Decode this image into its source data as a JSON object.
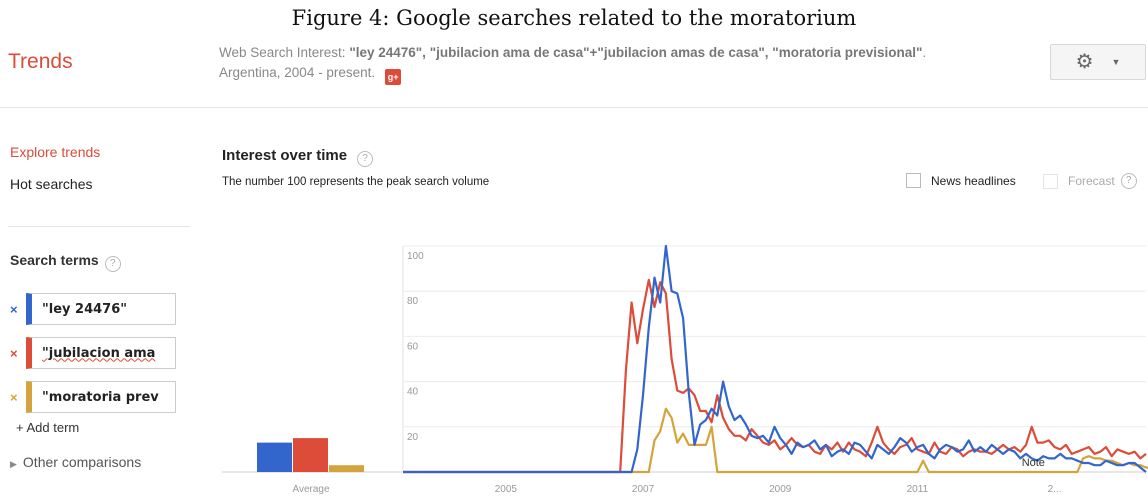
{
  "caption": "Figure 4: Google searches related to the moratorium",
  "app": {
    "logo": "Trends",
    "subtitle_prefix": "Web Search Interest: ",
    "subtitle_terms": "\"ley 24476\", \"jubilacion ama de casa\"+\"jubilacion amas de casa\", \"moratoria previsional\"",
    "subtitle_suffix": ". Argentina, 2004 - present.",
    "gplus_label": "g+",
    "settings_icon": "gear-icon"
  },
  "sidebar": {
    "explore": "Explore trends",
    "hot": "Hot searches",
    "search_terms_title": "Search terms",
    "help": "?",
    "terms": [
      {
        "label": "\"ley 24476\"",
        "color": "#3366cc",
        "remove": "×"
      },
      {
        "label": "\"jubilacion ama",
        "color": "#dd4b39",
        "remove": "×"
      },
      {
        "label": "\"moratoria prev",
        "color": "#d4a33b",
        "remove": "×"
      }
    ],
    "add_term": "Add term",
    "other_comparisons": "Other comparisons"
  },
  "main": {
    "title": "Interest over time",
    "help": "?",
    "desc": "The number 100 represents the peak search volume",
    "news_headlines": "News headlines",
    "forecast": "Forecast",
    "forecast_help": "?"
  },
  "chart_data": {
    "type": "line",
    "ylim": [
      0,
      100
    ],
    "yticks": [
      20,
      40,
      60,
      80,
      100
    ],
    "xticks": [
      "2005",
      "2007",
      "2009",
      "2011",
      "2..."
    ],
    "x_start": "2004-01",
    "x_step": "1 month",
    "note": "Note",
    "average_label": "Average",
    "average_values": [
      13,
      15,
      3
    ],
    "series": [
      {
        "color": "#3366cc",
        "values": [
          0,
          0,
          0,
          0,
          0,
          0,
          0,
          0,
          0,
          0,
          0,
          0,
          0,
          0,
          0,
          0,
          0,
          0,
          0,
          0,
          0,
          0,
          0,
          0,
          0,
          0,
          0,
          0,
          0,
          0,
          0,
          0,
          0,
          0,
          0,
          0,
          0,
          0,
          0,
          0,
          0,
          10,
          34,
          64,
          86,
          75,
          100,
          80,
          79,
          68,
          35,
          12,
          21,
          23,
          28,
          25,
          40,
          29,
          23,
          25,
          21,
          16,
          15,
          16,
          13,
          20,
          15,
          12,
          8,
          13,
          11,
          12,
          14,
          10,
          12,
          7,
          9,
          10,
          8,
          13,
          12,
          9,
          6,
          12,
          10,
          8,
          11,
          15,
          13,
          9,
          11,
          12,
          8,
          6,
          10,
          12,
          11,
          9,
          10,
          14,
          9,
          11,
          9,
          12,
          10,
          8,
          10,
          9,
          6,
          8,
          6,
          5,
          7,
          6,
          6,
          8,
          6,
          6,
          5,
          4,
          4,
          3,
          3,
          5,
          4,
          3,
          3,
          4,
          4,
          2,
          0
        ]
      },
      {
        "color": "#dd4b39",
        "values": [
          0,
          0,
          0,
          0,
          0,
          0,
          0,
          0,
          0,
          0,
          0,
          0,
          0,
          0,
          0,
          0,
          0,
          0,
          0,
          0,
          0,
          0,
          0,
          0,
          0,
          0,
          0,
          0,
          0,
          0,
          0,
          0,
          0,
          0,
          0,
          0,
          0,
          0,
          0,
          45,
          75,
          57,
          72,
          85,
          73,
          84,
          79,
          50,
          36,
          35,
          37,
          34,
          27,
          27,
          22,
          34,
          24,
          19,
          16,
          16,
          14,
          19,
          16,
          13,
          12,
          14,
          10,
          12,
          15,
          12,
          11,
          12,
          9,
          8,
          12,
          10,
          13,
          9,
          13,
          10,
          9,
          7,
          13,
          20,
          13,
          10,
          8,
          11,
          12,
          15,
          10,
          9,
          8,
          13,
          9,
          8,
          11,
          10,
          7,
          9,
          10,
          9,
          9,
          8,
          10,
          12,
          10,
          11,
          9,
          12,
          20,
          13,
          13,
          14,
          11,
          10,
          12,
          8,
          9,
          10,
          11,
          8,
          9,
          11,
          7,
          10,
          9,
          8,
          9,
          6,
          8
        ]
      },
      {
        "color": "#d4a33b",
        "values": [
          0,
          0,
          0,
          0,
          0,
          0,
          0,
          0,
          0,
          0,
          0,
          0,
          0,
          0,
          0,
          0,
          0,
          0,
          0,
          0,
          0,
          0,
          0,
          0,
          0,
          0,
          0,
          0,
          0,
          0,
          0,
          0,
          0,
          0,
          0,
          0,
          0,
          0,
          0,
          0,
          0,
          0,
          0,
          0,
          14,
          18,
          28,
          24,
          13,
          17,
          12,
          12,
          12,
          12,
          20,
          0,
          0,
          0,
          0,
          0,
          0,
          0,
          0,
          0,
          0,
          0,
          0,
          0,
          0,
          0,
          0,
          0,
          0,
          0,
          0,
          0,
          0,
          0,
          0,
          0,
          0,
          0,
          0,
          0,
          0,
          0,
          0,
          0,
          0,
          0,
          0,
          5,
          0,
          0,
          0,
          0,
          0,
          0,
          0,
          0,
          0,
          0,
          0,
          0,
          0,
          0,
          0,
          0,
          0,
          0,
          0,
          0,
          0,
          0,
          0,
          0,
          0,
          0,
          0,
          6,
          7,
          6,
          6,
          5,
          5,
          4,
          3,
          4,
          3,
          3,
          2,
          2,
          1,
          1,
          0,
          0,
          0
        ]
      }
    ]
  }
}
